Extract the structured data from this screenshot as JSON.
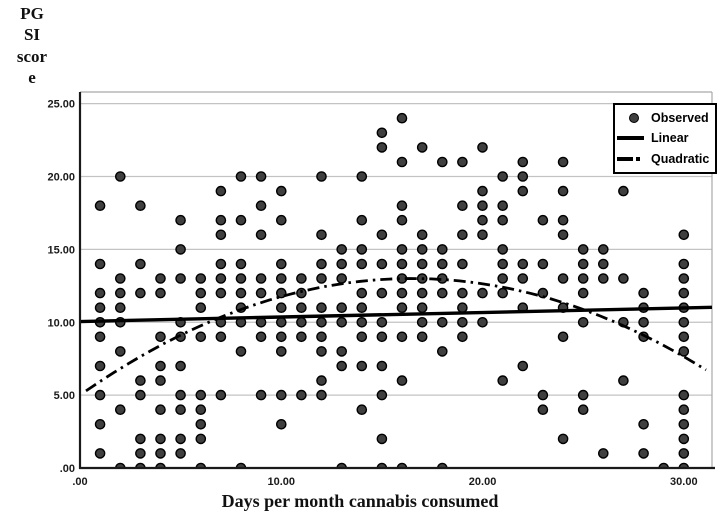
{
  "figure": {
    "background": "#ffffff"
  },
  "chart_data": {
    "type": "scatter",
    "title": "",
    "xlabel": "Days per month cannabis consumed",
    "ylabel": "PGSI score",
    "ylabel_display_lines": [
      "PG",
      "SI",
      "scor",
      "e"
    ],
    "xlim": [
      0,
      31.4
    ],
    "ylim": [
      0,
      25.8
    ],
    "grid": "horizontal-only",
    "x_ticks": {
      "values": [
        0,
        10,
        20,
        30
      ],
      "labels": [
        ".00",
        "10.00",
        "20.00",
        "30.00"
      ]
    },
    "y_ticks": {
      "values": [
        0,
        5,
        10,
        15,
        20,
        25
      ],
      "labels": [
        ".00",
        "5.00",
        "10.00",
        "15.00",
        "20.00",
        "25.00"
      ]
    },
    "colors": {
      "dot_fill": "#3f3f3f",
      "dot_stroke": "#000000",
      "fit_line": "#000000",
      "gridline": "#c3c3c3",
      "axis": "#1a1a1a",
      "border": "#a9a9a9"
    },
    "legend": {
      "position": "top-right",
      "entries": [
        {
          "label": "Observed",
          "marker": "dot"
        },
        {
          "label": "Linear",
          "marker": "solid-line"
        },
        {
          "label": "Quadratic",
          "marker": "dash-dot-line"
        }
      ]
    },
    "series": [
      {
        "name": "Observed",
        "type": "scatter",
        "points": [
          [
            16,
            24
          ],
          [
            15,
            23
          ],
          [
            15,
            22
          ],
          [
            17,
            22
          ],
          [
            20,
            22
          ],
          [
            16,
            21
          ],
          [
            18,
            21
          ],
          [
            19,
            21
          ],
          [
            22,
            21
          ],
          [
            24,
            21
          ],
          [
            2,
            20
          ],
          [
            8,
            20
          ],
          [
            9,
            20
          ],
          [
            12,
            20
          ],
          [
            14,
            20
          ],
          [
            21,
            20
          ],
          [
            22,
            20
          ],
          [
            7,
            19
          ],
          [
            10,
            19
          ],
          [
            20,
            19
          ],
          [
            22,
            19
          ],
          [
            24,
            19
          ],
          [
            27,
            19
          ],
          [
            1,
            18
          ],
          [
            3,
            18
          ],
          [
            9,
            18
          ],
          [
            16,
            18
          ],
          [
            19,
            18
          ],
          [
            20,
            18
          ],
          [
            21,
            18
          ],
          [
            5,
            17
          ],
          [
            7,
            17
          ],
          [
            8,
            17
          ],
          [
            10,
            17
          ],
          [
            14,
            17
          ],
          [
            16,
            17
          ],
          [
            20,
            17
          ],
          [
            21,
            17
          ],
          [
            23,
            17
          ],
          [
            24,
            17
          ],
          [
            7,
            16
          ],
          [
            9,
            16
          ],
          [
            12,
            16
          ],
          [
            15,
            16
          ],
          [
            17,
            16
          ],
          [
            19,
            16
          ],
          [
            20,
            16
          ],
          [
            24,
            16
          ],
          [
            30,
            16
          ],
          [
            5,
            15
          ],
          [
            13,
            15
          ],
          [
            14,
            15
          ],
          [
            16,
            15
          ],
          [
            17,
            15
          ],
          [
            18,
            15
          ],
          [
            21,
            15
          ],
          [
            25,
            15
          ],
          [
            26,
            15
          ],
          [
            1,
            14
          ],
          [
            3,
            14
          ],
          [
            7,
            14
          ],
          [
            8,
            14
          ],
          [
            10,
            14
          ],
          [
            12,
            14
          ],
          [
            13,
            14
          ],
          [
            14,
            14
          ],
          [
            15,
            14
          ],
          [
            16,
            14
          ],
          [
            17,
            14
          ],
          [
            18,
            14
          ],
          [
            19,
            14
          ],
          [
            21,
            14
          ],
          [
            22,
            14
          ],
          [
            23,
            14
          ],
          [
            25,
            14
          ],
          [
            26,
            14
          ],
          [
            30,
            14
          ],
          [
            2,
            13
          ],
          [
            4,
            13
          ],
          [
            5,
            13
          ],
          [
            6,
            13
          ],
          [
            7,
            13
          ],
          [
            8,
            13
          ],
          [
            9,
            13
          ],
          [
            10,
            13
          ],
          [
            11,
            13
          ],
          [
            12,
            13
          ],
          [
            13,
            13
          ],
          [
            16,
            13
          ],
          [
            17,
            13
          ],
          [
            18,
            13
          ],
          [
            21,
            13
          ],
          [
            22,
            13
          ],
          [
            24,
            13
          ],
          [
            25,
            13
          ],
          [
            26,
            13
          ],
          [
            27,
            13
          ],
          [
            30,
            13
          ],
          [
            1,
            12
          ],
          [
            2,
            12
          ],
          [
            3,
            12
          ],
          [
            4,
            12
          ],
          [
            6,
            12
          ],
          [
            7,
            12
          ],
          [
            8,
            12
          ],
          [
            9,
            12
          ],
          [
            10,
            12
          ],
          [
            11,
            12
          ],
          [
            14,
            12
          ],
          [
            15,
            12
          ],
          [
            16,
            12
          ],
          [
            17,
            12
          ],
          [
            18,
            12
          ],
          [
            19,
            12
          ],
          [
            20,
            12
          ],
          [
            21,
            12
          ],
          [
            23,
            12
          ],
          [
            25,
            12
          ],
          [
            28,
            12
          ],
          [
            30,
            12
          ],
          [
            1,
            11
          ],
          [
            2,
            11
          ],
          [
            6,
            11
          ],
          [
            8,
            11
          ],
          [
            10,
            11
          ],
          [
            11,
            11
          ],
          [
            12,
            11
          ],
          [
            13,
            11
          ],
          [
            14,
            11
          ],
          [
            16,
            11
          ],
          [
            17,
            11
          ],
          [
            19,
            11
          ],
          [
            22,
            11
          ],
          [
            24,
            11
          ],
          [
            28,
            11
          ],
          [
            30,
            11
          ],
          [
            1,
            10
          ],
          [
            2,
            10
          ],
          [
            5,
            10
          ],
          [
            7,
            10
          ],
          [
            8,
            10
          ],
          [
            9,
            10
          ],
          [
            10,
            10
          ],
          [
            11,
            10
          ],
          [
            12,
            10
          ],
          [
            13,
            10
          ],
          [
            14,
            10
          ],
          [
            15,
            10
          ],
          [
            17,
            10
          ],
          [
            18,
            10
          ],
          [
            19,
            10
          ],
          [
            20,
            10
          ],
          [
            25,
            10
          ],
          [
            27,
            10
          ],
          [
            28,
            10
          ],
          [
            30,
            10
          ],
          [
            1,
            9
          ],
          [
            4,
            9
          ],
          [
            5,
            9
          ],
          [
            6,
            9
          ],
          [
            7,
            9
          ],
          [
            9,
            9
          ],
          [
            10,
            9
          ],
          [
            11,
            9
          ],
          [
            12,
            9
          ],
          [
            14,
            9
          ],
          [
            15,
            9
          ],
          [
            16,
            9
          ],
          [
            17,
            9
          ],
          [
            19,
            9
          ],
          [
            24,
            9
          ],
          [
            28,
            9
          ],
          [
            30,
            9
          ],
          [
            2,
            8
          ],
          [
            8,
            8
          ],
          [
            10,
            8
          ],
          [
            12,
            8
          ],
          [
            13,
            8
          ],
          [
            18,
            8
          ],
          [
            30,
            8
          ],
          [
            1,
            7
          ],
          [
            4,
            7
          ],
          [
            5,
            7
          ],
          [
            13,
            7
          ],
          [
            14,
            7
          ],
          [
            15,
            7
          ],
          [
            22,
            7
          ],
          [
            3,
            6
          ],
          [
            4,
            6
          ],
          [
            12,
            6
          ],
          [
            16,
            6
          ],
          [
            21,
            6
          ],
          [
            27,
            6
          ],
          [
            1,
            5
          ],
          [
            3,
            5
          ],
          [
            5,
            5
          ],
          [
            6,
            5
          ],
          [
            7,
            5
          ],
          [
            9,
            5
          ],
          [
            10,
            5
          ],
          [
            11,
            5
          ],
          [
            12,
            5
          ],
          [
            15,
            5
          ],
          [
            23,
            5
          ],
          [
            25,
            5
          ],
          [
            30,
            5
          ],
          [
            2,
            4
          ],
          [
            4,
            4
          ],
          [
            5,
            4
          ],
          [
            6,
            4
          ],
          [
            14,
            4
          ],
          [
            23,
            4
          ],
          [
            25,
            4
          ],
          [
            30,
            4
          ],
          [
            1,
            3
          ],
          [
            6,
            3
          ],
          [
            10,
            3
          ],
          [
            28,
            3
          ],
          [
            30,
            3
          ],
          [
            3,
            2
          ],
          [
            4,
            2
          ],
          [
            5,
            2
          ],
          [
            6,
            2
          ],
          [
            15,
            2
          ],
          [
            24,
            2
          ],
          [
            30,
            2
          ],
          [
            1,
            1
          ],
          [
            3,
            1
          ],
          [
            4,
            1
          ],
          [
            5,
            1
          ],
          [
            26,
            1
          ],
          [
            28,
            1
          ],
          [
            30,
            1
          ],
          [
            2,
            0
          ],
          [
            3,
            0
          ],
          [
            4,
            0
          ],
          [
            6,
            0
          ],
          [
            8,
            0
          ],
          [
            13,
            0
          ],
          [
            15,
            0
          ],
          [
            16,
            0
          ],
          [
            18,
            0
          ],
          [
            29,
            0
          ],
          [
            30,
            0
          ]
        ]
      },
      {
        "name": "Linear",
        "type": "fit-line",
        "model": "linear",
        "coefficients": {
          "intercept": 10.05,
          "slope": 0.031
        },
        "x_range": [
          0,
          31.4
        ]
      },
      {
        "name": "Quadratic",
        "type": "fit-line",
        "model": "quadratic",
        "coefficients": {
          "intercept": 5.0,
          "b1": 0.97,
          "b2": -0.0294
        },
        "x_range": [
          0.3,
          31.1
        ]
      }
    ]
  }
}
